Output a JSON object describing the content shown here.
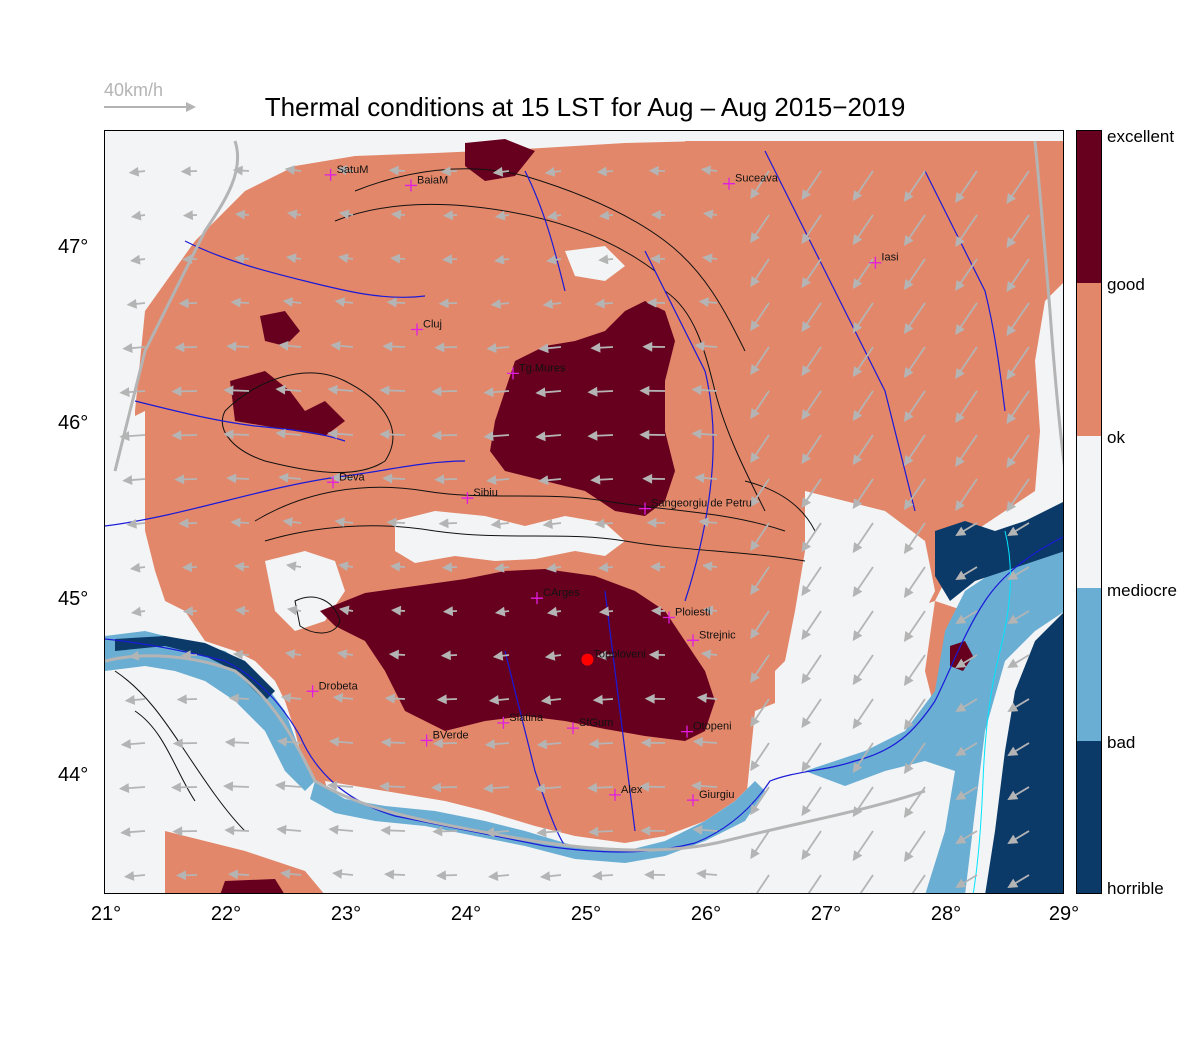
{
  "title": "Thermal conditions at 15 LST for Aug – Aug  2015−2019",
  "wind_legend": {
    "label": "40km/h"
  },
  "axes": {
    "lon_ticks": [
      "21°",
      "22°",
      "23°",
      "24°",
      "25°",
      "26°",
      "27°",
      "28°",
      "29°"
    ],
    "lat_ticks": [
      "47°",
      "46°",
      "45°",
      "44°"
    ],
    "lon_range": [
      21,
      29
    ],
    "lat_range": [
      43.35,
      47.7
    ]
  },
  "colorbar": {
    "labels": [
      "excellent",
      "good",
      "ok",
      "mediocre",
      "bad",
      "horrible"
    ],
    "colors": [
      "#67001f",
      "#e3876a",
      "#f2f4f6",
      "#6aaed3",
      "#0b3a69"
    ]
  },
  "cities": [
    {
      "name": "SatuM",
      "lon": 22.88,
      "lat": 47.45
    },
    {
      "name": "BaiaM",
      "lon": 23.55,
      "lat": 47.39
    },
    {
      "name": "Suceava",
      "lon": 26.2,
      "lat": 47.4
    },
    {
      "name": "Iasi",
      "lon": 27.42,
      "lat": 46.95
    },
    {
      "name": "Cluj",
      "lon": 23.6,
      "lat": 46.57
    },
    {
      "name": "Tg.Mures",
      "lon": 24.4,
      "lat": 46.32
    },
    {
      "name": "Deva",
      "lon": 22.9,
      "lat": 45.7
    },
    {
      "name": "Sibiu",
      "lon": 24.02,
      "lat": 45.61
    },
    {
      "name": "Sangeorgiu de Petru",
      "lon": 25.5,
      "lat": 45.55
    },
    {
      "name": "CArges",
      "lon": 24.6,
      "lat": 45.04
    },
    {
      "name": "Ploiesti",
      "lon": 25.7,
      "lat": 44.93
    },
    {
      "name": "Strejnic",
      "lon": 25.9,
      "lat": 44.8
    },
    {
      "name": "Topoloveni",
      "lon": 25.02,
      "lat": 44.69
    },
    {
      "name": "Drobeta",
      "lon": 22.73,
      "lat": 44.51
    },
    {
      "name": "Slatina",
      "lon": 24.32,
      "lat": 44.33
    },
    {
      "name": "SfGum",
      "lon": 24.9,
      "lat": 44.3
    },
    {
      "name": "Otopeni",
      "lon": 25.85,
      "lat": 44.28
    },
    {
      "name": "BVerde",
      "lon": 23.68,
      "lat": 44.23
    },
    {
      "name": "Alex",
      "lon": 25.25,
      "lat": 43.92
    },
    {
      "name": "Giurgiu",
      "lon": 25.9,
      "lat": 43.89
    }
  ],
  "site": {
    "name": "Topoloveni",
    "color": "#ff0000"
  }
}
